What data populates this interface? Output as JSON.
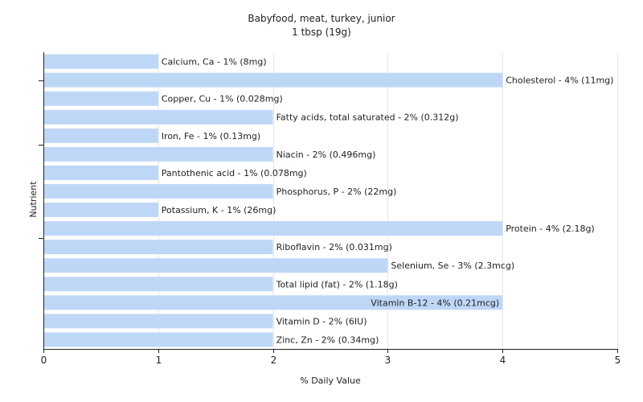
{
  "chart_data": {
    "type": "bar",
    "orientation": "horizontal",
    "title": "Babyfood, meat, turkey, junior",
    "subtitle": "1 tbsp (19g)",
    "xlabel": "% Daily Value",
    "ylabel": "Nutrient",
    "xlim": [
      0,
      5
    ],
    "xticks": [
      "0",
      "1",
      "2",
      "3",
      "4",
      "5"
    ],
    "grid": true,
    "bar_color": "#bfd7f7",
    "categories": [
      "Calcium, Ca",
      "Cholesterol",
      "Copper, Cu",
      "Fatty acids, total saturated",
      "Iron, Fe",
      "Niacin",
      "Pantothenic acid",
      "Phosphorus, P",
      "Potassium, K",
      "Protein",
      "Riboflavin",
      "Selenium, Se",
      "Total lipid (fat)",
      "Vitamin B-12",
      "Vitamin D",
      "Zinc, Zn"
    ],
    "values": [
      1,
      4,
      1,
      2,
      1,
      2,
      1,
      2,
      1,
      4,
      2,
      3,
      2,
      4,
      2,
      2
    ],
    "labels": [
      "Calcium, Ca - 1% (8mg)",
      "Cholesterol - 4% (11mg)",
      "Copper, Cu - 1% (0.028mg)",
      "Fatty acids, total saturated - 2% (0.312g)",
      "Iron, Fe - 1% (0.13mg)",
      "Niacin - 2% (0.496mg)",
      "Pantothenic acid - 1% (0.078mg)",
      "Phosphorus, P - 2% (22mg)",
      "Potassium, K - 1% (26mg)",
      "Protein - 4% (2.18g)",
      "Riboflavin - 2% (0.031mg)",
      "Selenium, Se - 3% (2.3mcg)",
      "Total lipid (fat) - 2% (1.18g)",
      "Vitamin B-12 - 4% (0.21mcg)",
      "Vitamin D - 2% (6IU)",
      "Zinc, Zn - 2% (0.34mg)"
    ]
  }
}
